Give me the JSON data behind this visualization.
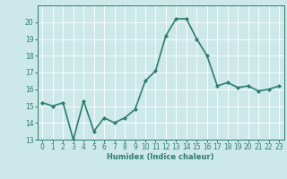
{
  "x": [
    0,
    1,
    2,
    3,
    4,
    5,
    6,
    7,
    8,
    9,
    10,
    11,
    12,
    13,
    14,
    15,
    16,
    17,
    18,
    19,
    20,
    21,
    22,
    23
  ],
  "y": [
    15.2,
    15.0,
    15.2,
    13.0,
    15.3,
    13.5,
    14.3,
    14.0,
    14.3,
    14.8,
    16.5,
    17.1,
    19.2,
    20.2,
    20.2,
    19.0,
    18.0,
    16.2,
    16.4,
    16.1,
    16.2,
    15.9,
    16.0,
    16.2
  ],
  "line_color": "#2e7d6e",
  "marker": "D",
  "marker_size": 2.0,
  "bg_color": "#cce8e8",
  "grid_color": "#ffffff",
  "axis_color": "#2e7d6e",
  "tick_color": "#2e7d6e",
  "xlabel": "Humidex (Indice chaleur)",
  "xlabel_color": "#2e7d6e",
  "ylim": [
    13,
    21
  ],
  "xlim": [
    -0.5,
    23.5
  ],
  "yticks": [
    13,
    14,
    15,
    16,
    17,
    18,
    19,
    20
  ],
  "xticks": [
    0,
    1,
    2,
    3,
    4,
    5,
    6,
    7,
    8,
    9,
    10,
    11,
    12,
    13,
    14,
    15,
    16,
    17,
    18,
    19,
    20,
    21,
    22,
    23
  ],
  "linewidth": 1.2,
  "tick_fontsize": 5.5,
  "xlabel_fontsize": 6.0
}
